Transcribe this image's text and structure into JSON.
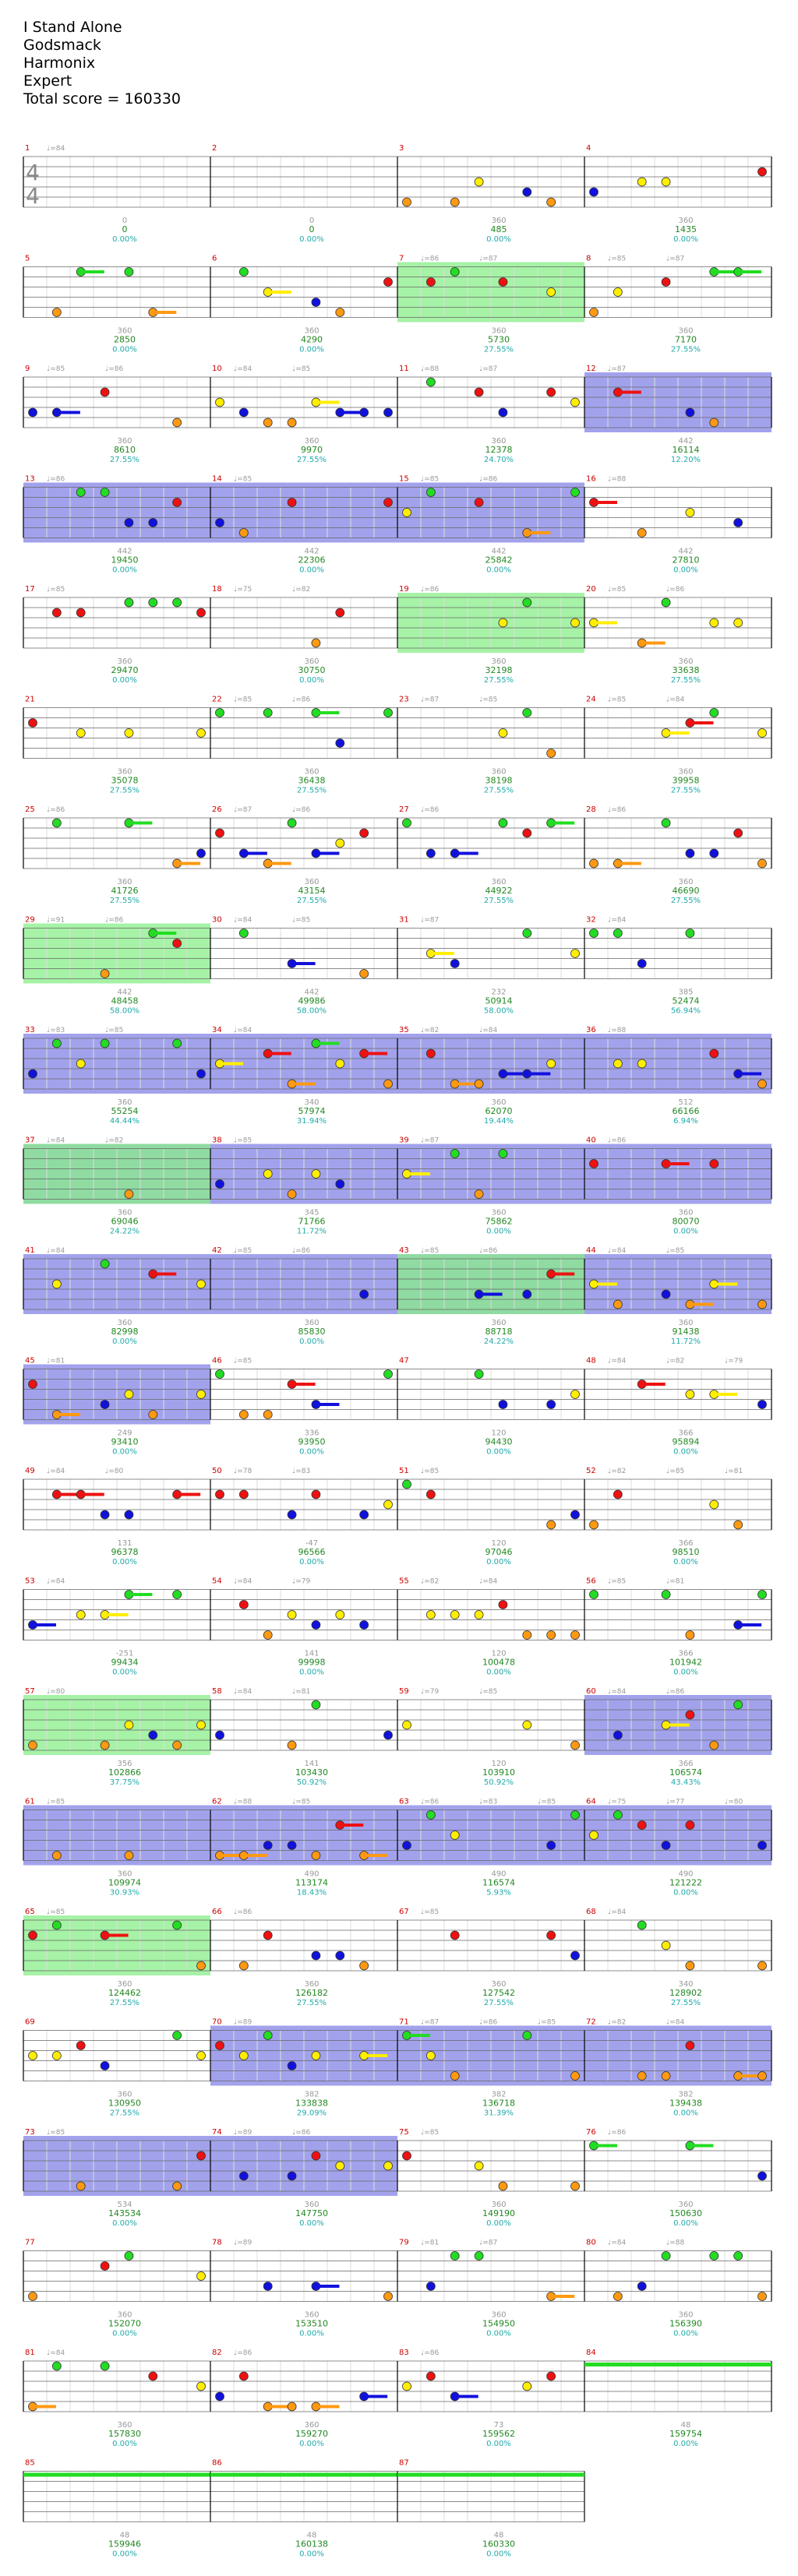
{
  "song": {
    "title": "I Stand Alone",
    "artist": "Godsmack",
    "author": "Harmonix",
    "difficulty": "Expert",
    "total_score_text": "Total score = 160330"
  },
  "time_signature": [
    "4",
    "4"
  ],
  "colors": {
    "green": "#22dd22",
    "red": "#ee1111",
    "yellow": "#ffee00",
    "blue": "#1111dd",
    "orange": "#ff9911",
    "sp_fill": "#88ee88",
    "solo_fill": "#5555dd",
    "measure_num": "#cc0000",
    "score": "#228822",
    "percent": "#22aaaa",
    "bpm": "#999999",
    "grid": "#dddddd"
  },
  "chart_data": {
    "type": "table",
    "measures": [
      {
        "n": 1,
        "delta": "0",
        "score": "0",
        "pct": "0.00%",
        "sp": false,
        "solo": false,
        "bpms": [
          "♩=84"
        ]
      },
      {
        "n": 2,
        "delta": "0",
        "score": "0",
        "pct": "0.00%",
        "sp": false,
        "solo": false,
        "bpms": []
      },
      {
        "n": 3,
        "delta": "360",
        "score": "485",
        "pct": "0.00%",
        "sp": false,
        "solo": false,
        "bpms": []
      },
      {
        "n": 4,
        "delta": "360",
        "score": "1435",
        "pct": "0.00%",
        "sp": false,
        "solo": false,
        "bpms": []
      },
      {
        "n": 5,
        "delta": "360",
        "score": "2850",
        "pct": "0.00%",
        "sp": false,
        "solo": false,
        "bpms": []
      },
      {
        "n": 6,
        "delta": "360",
        "score": "4290",
        "pct": "0.00%",
        "sp": false,
        "solo": false,
        "bpms": []
      },
      {
        "n": 7,
        "delta": "360",
        "score": "5730",
        "pct": "27.55%",
        "sp": true,
        "solo": false,
        "bpms": [
          "♩=86",
          "♩=87"
        ]
      },
      {
        "n": 8,
        "delta": "360",
        "score": "7170",
        "pct": "27.55%",
        "sp": false,
        "solo": false,
        "bpms": [
          "♩=85",
          "♩=87"
        ]
      },
      {
        "n": 9,
        "delta": "360",
        "score": "8610",
        "pct": "27.55%",
        "sp": false,
        "solo": false,
        "bpms": [
          "♩=85",
          "♩=86"
        ]
      },
      {
        "n": 10,
        "delta": "360",
        "score": "9970",
        "pct": "27.55%",
        "sp": false,
        "solo": false,
        "bpms": [
          "♩=84",
          "♩=85"
        ]
      },
      {
        "n": 11,
        "delta": "360",
        "score": "12378",
        "pct": "24.70%",
        "sp": false,
        "solo": false,
        "bpms": [
          "♩=88",
          "♩=87"
        ]
      },
      {
        "n": 12,
        "delta": "442",
        "score": "16114",
        "pct": "12.20%",
        "sp": false,
        "solo": true,
        "bpms": [
          "♩=87"
        ]
      },
      {
        "n": 13,
        "delta": "442",
        "score": "19450",
        "pct": "0.00%",
        "sp": false,
        "solo": true,
        "bpms": [
          "♩=86"
        ]
      },
      {
        "n": 14,
        "delta": "442",
        "score": "22306",
        "pct": "0.00%",
        "sp": false,
        "solo": true,
        "bpms": [
          "♩=85"
        ]
      },
      {
        "n": 15,
        "delta": "442",
        "score": "25842",
        "pct": "0.00%",
        "sp": false,
        "solo": true,
        "bpms": [
          "♩=85",
          "♩=86"
        ]
      },
      {
        "n": 16,
        "delta": "442",
        "score": "27810",
        "pct": "0.00%",
        "sp": false,
        "solo": false,
        "bpms": [
          "♩=88"
        ]
      },
      {
        "n": 17,
        "delta": "360",
        "score": "29470",
        "pct": "0.00%",
        "sp": false,
        "solo": false,
        "bpms": [
          "♩=85"
        ]
      },
      {
        "n": 18,
        "delta": "360",
        "score": "30750",
        "pct": "0.00%",
        "sp": false,
        "solo": false,
        "bpms": [
          "♩=75",
          "♩=82"
        ]
      },
      {
        "n": 19,
        "delta": "360",
        "score": "32198",
        "pct": "27.55%",
        "sp": true,
        "solo": false,
        "bpms": [
          "♩=86"
        ]
      },
      {
        "n": 20,
        "delta": "360",
        "score": "33638",
        "pct": "27.55%",
        "sp": false,
        "solo": false,
        "bpms": [
          "♩=85",
          "♩=86"
        ]
      },
      {
        "n": 21,
        "delta": "360",
        "score": "35078",
        "pct": "27.55%",
        "sp": false,
        "solo": false,
        "bpms": []
      },
      {
        "n": 22,
        "delta": "360",
        "score": "36438",
        "pct": "27.55%",
        "sp": false,
        "solo": false,
        "bpms": [
          "♩=85",
          "♩=86"
        ]
      },
      {
        "n": 23,
        "delta": "360",
        "score": "38198",
        "pct": "27.55%",
        "sp": false,
        "solo": false,
        "bpms": [
          "♩=87",
          "♩=85"
        ]
      },
      {
        "n": 24,
        "delta": "360",
        "score": "39958",
        "pct": "27.55%",
        "sp": false,
        "solo": false,
        "bpms": [
          "♩=85",
          "♩=84"
        ]
      },
      {
        "n": 25,
        "delta": "360",
        "score": "41726",
        "pct": "27.55%",
        "sp": false,
        "solo": false,
        "bpms": [
          "♩=86"
        ]
      },
      {
        "n": 26,
        "delta": "360",
        "score": "43154",
        "pct": "27.55%",
        "sp": false,
        "solo": false,
        "bpms": [
          "♩=87",
          "♩=86"
        ]
      },
      {
        "n": 27,
        "delta": "360",
        "score": "44922",
        "pct": "27.55%",
        "sp": false,
        "solo": false,
        "bpms": [
          "♩=86"
        ]
      },
      {
        "n": 28,
        "delta": "360",
        "score": "46690",
        "pct": "27.55%",
        "sp": false,
        "solo": false,
        "bpms": [
          "♩=86"
        ]
      },
      {
        "n": 29,
        "delta": "442",
        "score": "48458",
        "pct": "58.00%",
        "sp": true,
        "solo": false,
        "bpms": [
          "♩=91",
          "♩=86"
        ]
      },
      {
        "n": 30,
        "delta": "442",
        "score": "49986",
        "pct": "58.00%",
        "sp": false,
        "solo": false,
        "bpms": [
          "♩=84",
          "♩=85"
        ]
      },
      {
        "n": 31,
        "delta": "232",
        "score": "50914",
        "pct": "58.00%",
        "sp": false,
        "solo": false,
        "bpms": [
          "♩=87"
        ]
      },
      {
        "n": 32,
        "delta": "385",
        "score": "52474",
        "pct": "56.94%",
        "sp": false,
        "solo": false,
        "bpms": [
          "♩=84"
        ]
      },
      {
        "n": 33,
        "delta": "360",
        "score": "55254",
        "pct": "44.44%",
        "sp": false,
        "solo": true,
        "bpms": [
          "♩=83",
          "♩=85"
        ]
      },
      {
        "n": 34,
        "delta": "340",
        "score": "57974",
        "pct": "31.94%",
        "sp": false,
        "solo": true,
        "bpms": [
          "♩=84"
        ]
      },
      {
        "n": 35,
        "delta": "360",
        "score": "62070",
        "pct": "19.44%",
        "sp": false,
        "solo": true,
        "bpms": [
          "♩=82",
          "♩=84"
        ]
      },
      {
        "n": 36,
        "delta": "512",
        "score": "66166",
        "pct": "6.94%",
        "sp": false,
        "solo": true,
        "bpms": [
          "♩=88"
        ]
      },
      {
        "n": 37,
        "delta": "360",
        "score": "69046",
        "pct": "24.22%",
        "sp": true,
        "solo": true,
        "bpms": [
          "♩=84",
          "♩=82"
        ]
      },
      {
        "n": 38,
        "delta": "345",
        "score": "71766",
        "pct": "11.72%",
        "sp": false,
        "solo": true,
        "bpms": [
          "♩=85"
        ]
      },
      {
        "n": 39,
        "delta": "360",
        "score": "75862",
        "pct": "0.00%",
        "sp": false,
        "solo": true,
        "bpms": [
          "♩=87"
        ]
      },
      {
        "n": 40,
        "delta": "360",
        "score": "80070",
        "pct": "0.00%",
        "sp": false,
        "solo": true,
        "bpms": [
          "♩=86"
        ]
      },
      {
        "n": 41,
        "delta": "360",
        "score": "82998",
        "pct": "0.00%",
        "sp": false,
        "solo": true,
        "bpms": [
          "♩=84"
        ]
      },
      {
        "n": 42,
        "delta": "360",
        "score": "85830",
        "pct": "0.00%",
        "sp": false,
        "solo": true,
        "bpms": [
          "♩=85",
          "♩=86"
        ]
      },
      {
        "n": 43,
        "delta": "360",
        "score": "88718",
        "pct": "24.22%",
        "sp": true,
        "solo": true,
        "bpms": [
          "♩=85",
          "♩=86"
        ]
      },
      {
        "n": 44,
        "delta": "360",
        "score": "91438",
        "pct": "11.72%",
        "sp": false,
        "solo": true,
        "bpms": [
          "♩=84",
          "♩=85"
        ]
      },
      {
        "n": 45,
        "delta": "249",
        "score": "93410",
        "pct": "0.00%",
        "sp": false,
        "solo": true,
        "bpms": [
          "♩=81"
        ]
      },
      {
        "n": 46,
        "delta": "336",
        "score": "93950",
        "pct": "0.00%",
        "sp": false,
        "solo": false,
        "bpms": [
          "♩=85"
        ]
      },
      {
        "n": 47,
        "delta": "120",
        "score": "94430",
        "pct": "0.00%",
        "sp": false,
        "solo": false,
        "bpms": []
      },
      {
        "n": 48,
        "delta": "366",
        "score": "95894",
        "pct": "0.00%",
        "sp": false,
        "solo": false,
        "bpms": [
          "♩=84",
          "♩=82",
          "♩=79"
        ]
      },
      {
        "n": 49,
        "delta": "131",
        "score": "96378",
        "pct": "0.00%",
        "sp": false,
        "solo": false,
        "bpms": [
          "♩=84",
          "♩=80"
        ]
      },
      {
        "n": 50,
        "delta": "-47",
        "score": "96566",
        "pct": "0.00%",
        "sp": false,
        "solo": false,
        "bpms": [
          "♩=78",
          "♩=83"
        ]
      },
      {
        "n": 51,
        "delta": "120",
        "score": "97046",
        "pct": "0.00%",
        "sp": false,
        "solo": false,
        "bpms": [
          "♩=85"
        ]
      },
      {
        "n": 52,
        "delta": "366",
        "score": "98510",
        "pct": "0.00%",
        "sp": false,
        "solo": false,
        "bpms": [
          "♩=82",
          "♩=85",
          "♩=81"
        ]
      },
      {
        "n": 53,
        "delta": "-251",
        "score": "99434",
        "pct": "0.00%",
        "sp": false,
        "solo": false,
        "bpms": [
          "♩=84"
        ]
      },
      {
        "n": 54,
        "delta": "141",
        "score": "99998",
        "pct": "0.00%",
        "sp": false,
        "solo": false,
        "bpms": [
          "♩=84",
          "♩=79"
        ]
      },
      {
        "n": 55,
        "delta": "120",
        "score": "100478",
        "pct": "0.00%",
        "sp": false,
        "solo": false,
        "bpms": [
          "♩=82",
          "♩=84"
        ]
      },
      {
        "n": 56,
        "delta": "366",
        "score": "101942",
        "pct": "0.00%",
        "sp": false,
        "solo": false,
        "bpms": [
          "♩=85",
          "♩=81"
        ]
      },
      {
        "n": 57,
        "delta": "356",
        "score": "102866",
        "pct": "37.75%",
        "sp": true,
        "solo": false,
        "bpms": [
          "♩=80"
        ]
      },
      {
        "n": 58,
        "delta": "141",
        "score": "103430",
        "pct": "50.92%",
        "sp": false,
        "solo": false,
        "bpms": [
          "♩=84",
          "♩=81"
        ]
      },
      {
        "n": 59,
        "delta": "120",
        "score": "103910",
        "pct": "50.92%",
        "sp": false,
        "solo": false,
        "bpms": [
          "♩=79",
          "♩=85"
        ]
      },
      {
        "n": 60,
        "delta": "366",
        "score": "106574",
        "pct": "43.43%",
        "sp": false,
        "solo": true,
        "bpms": [
          "♩=84",
          "♩=86"
        ]
      },
      {
        "n": 61,
        "delta": "360",
        "score": "109974",
        "pct": "30.93%",
        "sp": false,
        "solo": true,
        "bpms": [
          "♩=85"
        ]
      },
      {
        "n": 62,
        "delta": "490",
        "score": "113174",
        "pct": "18.43%",
        "sp": false,
        "solo": true,
        "bpms": [
          "♩=88",
          "♩=85"
        ]
      },
      {
        "n": 63,
        "delta": "490",
        "score": "116574",
        "pct": "5.93%",
        "sp": false,
        "solo": true,
        "bpms": [
          "♩=86",
          "♩=83",
          "♩=85"
        ]
      },
      {
        "n": 64,
        "delta": "490",
        "score": "121222",
        "pct": "0.00%",
        "sp": false,
        "solo": true,
        "bpms": [
          "♩=75",
          "♩=77",
          "♩=80"
        ]
      },
      {
        "n": 65,
        "delta": "360",
        "score": "124462",
        "pct": "27.55%",
        "sp": true,
        "solo": false,
        "bpms": [
          "♩=85"
        ]
      },
      {
        "n": 66,
        "delta": "360",
        "score": "126182",
        "pct": "27.55%",
        "sp": false,
        "solo": false,
        "bpms": [
          "♩=86"
        ]
      },
      {
        "n": 67,
        "delta": "360",
        "score": "127542",
        "pct": "27.55%",
        "sp": false,
        "solo": false,
        "bpms": [
          "♩=85"
        ]
      },
      {
        "n": 68,
        "delta": "340",
        "score": "128902",
        "pct": "27.55%",
        "sp": false,
        "solo": false,
        "bpms": [
          "♩=84"
        ]
      },
      {
        "n": 69,
        "delta": "360",
        "score": "130950",
        "pct": "27.55%",
        "sp": false,
        "solo": false,
        "bpms": []
      },
      {
        "n": 70,
        "delta": "382",
        "score": "133838",
        "pct": "29.09%",
        "sp": false,
        "solo": true,
        "bpms": [
          "♩=89"
        ]
      },
      {
        "n": 71,
        "delta": "382",
        "score": "136718",
        "pct": "31.39%",
        "sp": false,
        "solo": true,
        "bpms": [
          "♩=87",
          "♩=86",
          "♩=85"
        ]
      },
      {
        "n": 72,
        "delta": "382",
        "score": "139438",
        "pct": "0.00%",
        "sp": false,
        "solo": true,
        "bpms": [
          "♩=82",
          "♩=84"
        ]
      },
      {
        "n": 73,
        "delta": "534",
        "score": "143534",
        "pct": "0.00%",
        "sp": false,
        "solo": true,
        "bpms": [
          "♩=85"
        ]
      },
      {
        "n": 74,
        "delta": "360",
        "score": "147750",
        "pct": "0.00%",
        "sp": false,
        "solo": true,
        "bpms": [
          "♩=89",
          "♩=86"
        ]
      },
      {
        "n": 75,
        "delta": "360",
        "score": "149190",
        "pct": "0.00%",
        "sp": false,
        "solo": false,
        "bpms": [
          "♩=85"
        ]
      },
      {
        "n": 76,
        "delta": "360",
        "score": "150630",
        "pct": "0.00%",
        "sp": false,
        "solo": false,
        "bpms": [
          "♩=86"
        ]
      },
      {
        "n": 77,
        "delta": "360",
        "score": "152070",
        "pct": "0.00%",
        "sp": false,
        "solo": false,
        "bpms": []
      },
      {
        "n": 78,
        "delta": "360",
        "score": "153510",
        "pct": "0.00%",
        "sp": false,
        "solo": false,
        "bpms": [
          "♩=89"
        ]
      },
      {
        "n": 79,
        "delta": "360",
        "score": "154950",
        "pct": "0.00%",
        "sp": false,
        "solo": false,
        "bpms": [
          "♩=81",
          "♩=87"
        ]
      },
      {
        "n": 80,
        "delta": "360",
        "score": "156390",
        "pct": "0.00%",
        "sp": false,
        "solo": false,
        "bpms": [
          "♩=84",
          "♩=88"
        ]
      },
      {
        "n": 81,
        "delta": "360",
        "score": "157830",
        "pct": "0.00%",
        "sp": false,
        "solo": false,
        "bpms": [
          "♩=84"
        ]
      },
      {
        "n": 82,
        "delta": "360",
        "score": "159270",
        "pct": "0.00%",
        "sp": false,
        "solo": false,
        "bpms": [
          "♩=86"
        ]
      },
      {
        "n": 83,
        "delta": "73",
        "score": "159562",
        "pct": "0.00%",
        "sp": false,
        "solo": false,
        "bpms": [
          "♩=86"
        ]
      },
      {
        "n": 84,
        "delta": "48",
        "score": "159754",
        "pct": "0.00%",
        "sp": false,
        "solo": false,
        "bpms": []
      },
      {
        "n": 85,
        "delta": "48",
        "score": "159946",
        "pct": "0.00%",
        "sp": false,
        "solo": false,
        "bpms": []
      },
      {
        "n": 86,
        "delta": "48",
        "score": "160138",
        "pct": "0.00%",
        "sp": false,
        "solo": false,
        "bpms": []
      },
      {
        "n": 87,
        "delta": "48",
        "score": "160330",
        "pct": "0.00%",
        "sp": false,
        "solo": false,
        "bpms": []
      }
    ]
  }
}
